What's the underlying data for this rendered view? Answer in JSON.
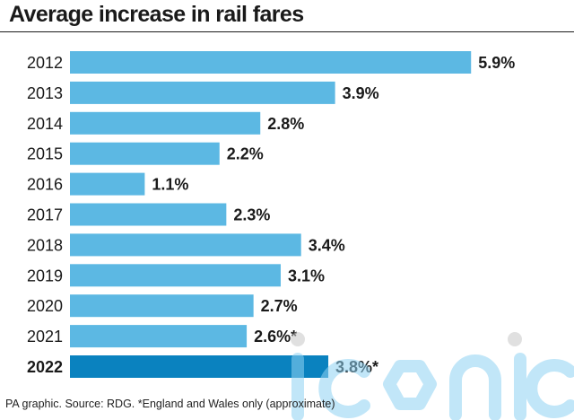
{
  "title": "Average increase in rail fares",
  "source": "PA graphic. Source: RDG. *England and Wales only (approximate)",
  "watermark_text": "iconic",
  "colors": {
    "bar": "#5cb8e3",
    "bar_highlight": "#0a82bf",
    "text": "#1a1a1a",
    "watermark": "#8fd3f3"
  },
  "chart_data": {
    "type": "bar",
    "orientation": "horizontal",
    "categories": [
      "2012",
      "2013",
      "2014",
      "2015",
      "2016",
      "2017",
      "2018",
      "2019",
      "2020",
      "2021",
      "2022"
    ],
    "values": [
      5.9,
      3.9,
      2.8,
      2.2,
      1.1,
      2.3,
      3.4,
      3.1,
      2.7,
      2.6,
      3.8
    ],
    "value_labels": [
      "5.9%",
      "3.9%",
      "2.8%",
      "2.2%",
      "1.1%",
      "2.3%",
      "3.4%",
      "3.1%",
      "2.7%",
      "2.6%*",
      "3.8%*"
    ],
    "highlight": [
      "2022"
    ],
    "title": "Average increase in rail fares",
    "xlabel": "",
    "ylabel": "",
    "unit": "%",
    "grid": false,
    "legend": "none"
  }
}
